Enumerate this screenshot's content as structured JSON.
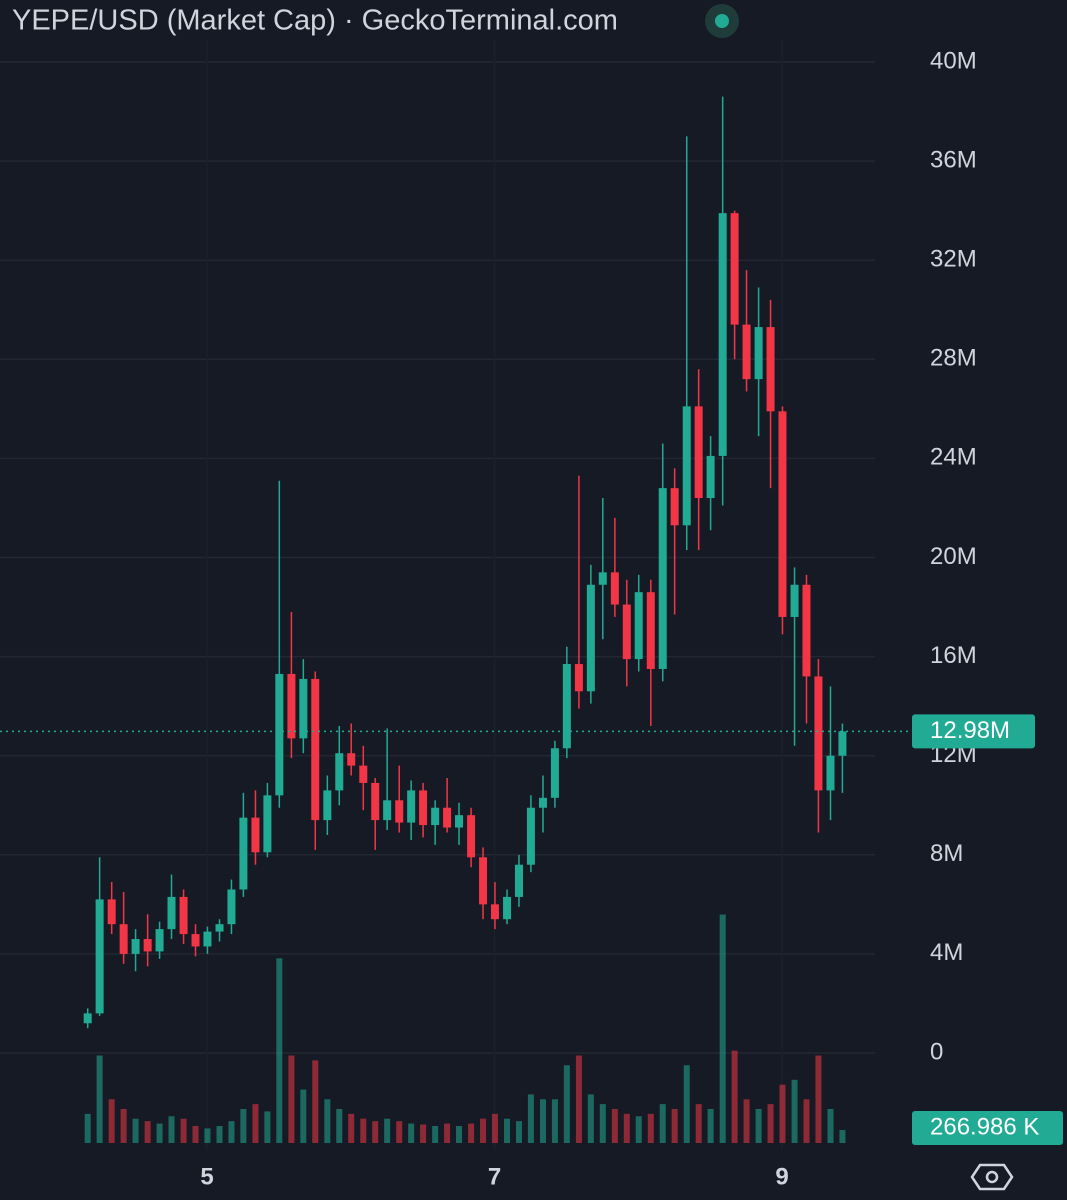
{
  "chart_data": {
    "type": "candlestick",
    "title": "YEPE/USD (Market Cap) · GeckoTerminal.com",
    "x": [
      4.17,
      4.253,
      4.337,
      4.42,
      4.503,
      4.587,
      4.67,
      4.753,
      4.837,
      4.92,
      5.003,
      5.087,
      5.17,
      5.253,
      5.337,
      5.42,
      5.503,
      5.587,
      5.67,
      5.753,
      5.837,
      5.92,
      6.003,
      6.087,
      6.17,
      6.253,
      6.337,
      6.42,
      6.503,
      6.587,
      6.67,
      6.753,
      6.837,
      6.92,
      7.003,
      7.087,
      7.17,
      7.253,
      7.337,
      7.42,
      7.503,
      7.587,
      7.67,
      7.753,
      7.837,
      7.92,
      8.003,
      8.087,
      8.17,
      8.253,
      8.337,
      8.42,
      8.503,
      8.587,
      8.67,
      8.753,
      8.837,
      8.92,
      9.003,
      9.087,
      9.17,
      9.253,
      9.337,
      9.42
    ],
    "open": [
      1.2,
      1.6,
      6.2,
      5.2,
      4.0,
      4.6,
      4.1,
      5.0,
      6.3,
      4.8,
      4.3,
      4.9,
      5.2,
      6.6,
      9.5,
      8.1,
      10.4,
      15.3,
      12.7,
      15.1,
      9.4,
      10.6,
      12.1,
      11.6,
      10.9,
      9.4,
      10.2,
      9.3,
      10.6,
      9.2,
      9.9,
      9.1,
      9.6,
      7.9,
      6.0,
      5.4,
      6.3,
      7.6,
      9.9,
      10.3,
      12.3,
      15.7,
      14.6,
      18.9,
      19.4,
      18.1,
      15.9,
      18.6,
      15.5,
      22.8,
      21.3,
      26.1,
      22.4,
      24.1,
      33.9,
      29.4,
      27.2,
      29.3,
      25.9,
      17.6,
      18.9,
      15.2,
      10.6,
      12.0
    ],
    "high": [
      1.8,
      7.9,
      6.9,
      6.5,
      5.0,
      5.6,
      5.3,
      7.2,
      6.6,
      5.2,
      5.1,
      5.4,
      7.0,
      10.5,
      10.6,
      10.9,
      23.1,
      17.8,
      15.9,
      15.4,
      11.2,
      13.2,
      13.3,
      12.4,
      11.1,
      13.1,
      11.6,
      11.0,
      10.9,
      10.2,
      11.1,
      10.1,
      9.9,
      8.3,
      6.9,
      6.6,
      8.0,
      10.4,
      11.2,
      12.6,
      16.4,
      23.3,
      19.7,
      22.4,
      21.6,
      19.1,
      19.3,
      19.1,
      24.6,
      23.6,
      37.0,
      27.6,
      24.9,
      38.6,
      34.0,
      31.6,
      30.9,
      30.4,
      26.1,
      19.6,
      19.3,
      15.9,
      14.8,
      13.3
    ],
    "low": [
      1.0,
      1.5,
      4.8,
      3.6,
      3.3,
      3.5,
      3.8,
      4.6,
      4.4,
      3.9,
      4.0,
      4.5,
      4.8,
      6.3,
      7.6,
      7.9,
      9.9,
      11.9,
      12.1,
      8.2,
      8.8,
      10.0,
      11.2,
      9.8,
      8.2,
      9.0,
      8.9,
      8.6,
      8.7,
      8.4,
      8.9,
      8.4,
      7.5,
      5.4,
      5.0,
      5.2,
      5.9,
      7.3,
      8.9,
      9.9,
      11.9,
      13.9,
      14.1,
      16.7,
      17.6,
      14.8,
      15.4,
      13.2,
      15.0,
      17.7,
      20.3,
      20.3,
      21.1,
      22.1,
      28.0,
      26.7,
      24.9,
      22.8,
      16.9,
      12.4,
      13.3,
      8.9,
      9.4,
      10.5
    ],
    "close": [
      1.6,
      6.2,
      5.2,
      4.0,
      4.6,
      4.1,
      5.0,
      6.3,
      4.8,
      4.3,
      4.9,
      5.2,
      6.6,
      9.5,
      8.1,
      10.4,
      15.3,
      12.7,
      15.1,
      9.4,
      10.6,
      12.1,
      11.6,
      10.9,
      9.4,
      10.2,
      9.3,
      10.6,
      9.2,
      9.9,
      9.1,
      9.6,
      7.9,
      6.0,
      5.4,
      6.3,
      7.6,
      9.9,
      10.3,
      12.3,
      15.7,
      14.6,
      18.9,
      19.4,
      18.1,
      15.9,
      18.6,
      15.5,
      22.8,
      21.3,
      26.1,
      22.4,
      24.1,
      33.9,
      29.4,
      27.2,
      29.3,
      25.9,
      17.6,
      18.9,
      15.2,
      10.6,
      12.0,
      12.98
    ],
    "volume": [
      600,
      1800,
      900,
      700,
      500,
      450,
      400,
      550,
      500,
      350,
      300,
      350,
      450,
      700,
      800,
      650,
      3800,
      1800,
      1100,
      1700,
      900,
      700,
      600,
      500,
      450,
      500,
      450,
      400,
      380,
      350,
      400,
      350,
      400,
      500,
      600,
      500,
      450,
      1000,
      900,
      900,
      1600,
      1800,
      1000,
      800,
      700,
      600,
      550,
      600,
      800,
      700,
      1600,
      800,
      700,
      4700,
      1900,
      900,
      700,
      800,
      1200,
      1300,
      900,
      1800,
      700,
      266.986
    ],
    "up_color": "#22ab94",
    "down_color": "#f23645",
    "xlim": [
      3.56,
      9.89
    ],
    "xticks": [
      5,
      7,
      9
    ],
    "ylim": [
      0,
      40
    ],
    "yticks": [
      0,
      {
        "value": 4,
        "label": "4M"
      },
      {
        "value": 8,
        "label": "8M"
      },
      {
        "value": 12,
        "label": "12M"
      },
      {
        "value": 16,
        "label": "16M"
      },
      {
        "value": 20,
        "label": "20M"
      },
      {
        "value": 24,
        "label": "24M"
      },
      {
        "value": 28,
        "label": "28M"
      },
      {
        "value": 32,
        "label": "32M"
      },
      {
        "value": 36,
        "label": "36M"
      },
      {
        "value": 40,
        "label": "40M"
      }
    ],
    "vlim": [
      0,
      5000
    ],
    "grid": true,
    "last_price": {
      "value": 12.98,
      "label": "12.98M"
    },
    "last_volume": {
      "value": 266.986,
      "label": "266.986 K"
    }
  }
}
